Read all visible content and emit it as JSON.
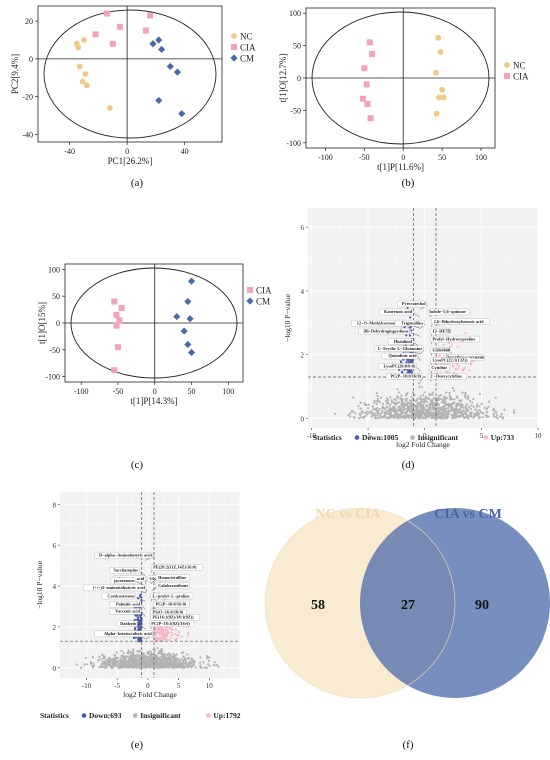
{
  "colors": {
    "nc": "#f0c98a",
    "cia": "#f2a3b5",
    "cm": "#4a6aa8",
    "down": "#4a5aa8",
    "insig": "#b3b3b3",
    "up": "#f6b6c6"
  },
  "captions": [
    "(a)",
    "(b)",
    "(c)",
    "(d)",
    "(e)",
    "(f)"
  ],
  "chart_data": [
    {
      "type": "scatter",
      "xlabel": "PC1[26.2%]",
      "ylabel": "PC2[9.4%]",
      "xticks": [
        -40,
        0,
        40
      ],
      "yticks": [
        -40,
        -20,
        0,
        20
      ],
      "xlim": [
        -62,
        66
      ],
      "ylim": [
        -44,
        28
      ],
      "legend": "right",
      "series": [
        {
          "name": "NC",
          "marker": "circle",
          "points": [
            [
              -34,
              6
            ],
            [
              -33,
              -4
            ],
            [
              -29,
              -8
            ],
            [
              -31,
              -12
            ],
            [
              -28,
              -14
            ],
            [
              -35,
              8
            ],
            [
              -12,
              -26
            ],
            [
              -30,
              10
            ]
          ]
        },
        {
          "name": "CIA",
          "marker": "square",
          "points": [
            [
              -22,
              13
            ],
            [
              -10,
              8
            ],
            [
              -5,
              17
            ],
            [
              13,
              15
            ],
            [
              16,
              23
            ],
            [
              -14,
              24
            ]
          ]
        },
        {
          "name": "CM",
          "marker": "diamond",
          "points": [
            [
              18,
              8
            ],
            [
              24,
              5
            ],
            [
              22,
              10
            ],
            [
              30,
              -4
            ],
            [
              35,
              -7
            ],
            [
              22,
              -22
            ],
            [
              38,
              -29
            ]
          ]
        }
      ]
    },
    {
      "type": "scatter",
      "xlabel": "t[1]P[11.6%]",
      "ylabel": "t[1]O[12.7%]",
      "xticks": [
        -100,
        -50,
        0,
        50,
        100
      ],
      "yticks": [
        -100,
        -50,
        0,
        50,
        100
      ],
      "xlim": [
        -125,
        118
      ],
      "ylim": [
        -108,
        108
      ],
      "legend": "right",
      "series": [
        {
          "name": "NC",
          "marker": "circle",
          "points": [
            [
              45,
              62
            ],
            [
              48,
              40
            ],
            [
              42,
              8
            ],
            [
              50,
              -18
            ],
            [
              46,
              -30
            ],
            [
              43,
              -55
            ],
            [
              52,
              -30
            ]
          ]
        },
        {
          "name": "CIA",
          "marker": "square",
          "points": [
            [
              -43,
              55
            ],
            [
              -40,
              37
            ],
            [
              -50,
              15
            ],
            [
              -47,
              -10
            ],
            [
              -52,
              -32
            ],
            [
              -46,
              -40
            ],
            [
              -42,
              -62
            ]
          ]
        }
      ]
    },
    {
      "type": "scatter",
      "xlabel": "t[1]P[14.3%]",
      "ylabel": "t[1]O[15%]",
      "xticks": [
        -100,
        -50,
        0,
        50,
        100
      ],
      "yticks": [
        -100,
        -50,
        0,
        50,
        100
      ],
      "xlim": [
        -122,
        120
      ],
      "ylim": [
        -110,
        110
      ],
      "legend": "right",
      "series": [
        {
          "name": "CIA",
          "marker": "square",
          "points": [
            [
              -55,
              40
            ],
            [
              -45,
              28
            ],
            [
              -52,
              15
            ],
            [
              -48,
              5
            ],
            [
              -52,
              -5
            ],
            [
              -50,
              -45
            ],
            [
              -55,
              -88
            ]
          ]
        },
        {
          "name": "CM",
          "marker": "diamond",
          "points": [
            [
              50,
              78
            ],
            [
              45,
              40
            ],
            [
              30,
              12
            ],
            [
              48,
              8
            ],
            [
              40,
              -15
            ],
            [
              45,
              -40
            ],
            [
              50,
              -55
            ]
          ]
        }
      ]
    },
    {
      "type": "scatter",
      "subtype": "volcano",
      "xlabel": "log2 Fold Change",
      "ylabel": "−log10 P−value",
      "xticks": [
        -10,
        -5,
        0,
        5,
        10
      ],
      "yticks": [
        0,
        2,
        4,
        6
      ],
      "xlim": [
        -10.3,
        10
      ],
      "ylim": [
        -0.3,
        6.6
      ],
      "thresholds": {
        "x": [
          -1,
          1
        ],
        "y": 1.3
      },
      "legend": {
        "title": "Statistics",
        "entries": [
          {
            "name": "Down:1005"
          },
          {
            "name": "Insignificant"
          },
          {
            "name": "Up:733"
          }
        ]
      },
      "labels": [
        {
          "text": "Pyrocatechol",
          "x": -0.8,
          "y": 3.55
        },
        {
          "text": "Kaurenoic acid",
          "x": -2.0,
          "y": 3.3
        },
        {
          "text": "Indole−5,6−quinone",
          "x": 0.3,
          "y": 3.3
        },
        {
          "text": "12−O−Methylcarnosic acid",
          "x": -2.5,
          "y": 2.95
        },
        {
          "text": "Trigonelline",
          "x": -1.0,
          "y": 2.95
        },
        {
          "text": "2,6−Dihydroxybenzoic acid",
          "x": 0.7,
          "y": 3.0
        },
        {
          "text": "[8]−Dehydrogingerdione",
          "x": -2.3,
          "y": 2.7
        },
        {
          "text": "12−HETE",
          "x": 0.6,
          "y": 2.7
        },
        {
          "text": "Histidinol",
          "x": -2.0,
          "y": 2.37
        },
        {
          "text": "Prolyl−Hydroxyproline",
          "x": 0.6,
          "y": 2.45
        },
        {
          "text": "L−Erythrulose",
          "x": -2.6,
          "y": 2.15
        },
        {
          "text": "L−Glutamine",
          "x": -1.1,
          "y": 2.15
        },
        {
          "text": "GSK0660",
          "x": 0.6,
          "y": 2.1
        },
        {
          "text": "Quinolinic acid",
          "x": -1.6,
          "y": 1.92
        },
        {
          "text": "Demethoxycurcumin",
          "x": 1.8,
          "y": 1.88
        },
        {
          "text": "LysoPC(22:1(13Z))",
          "x": 0.6,
          "y": 1.78
        },
        {
          "text": "LysoPC(20:0/0:0)",
          "x": -1.7,
          "y": 1.6
        },
        {
          "text": "Cytidine",
          "x": 0.5,
          "y": 1.55
        },
        {
          "text": "PC(P−16:0/16:0)",
          "x": -1.2,
          "y": 1.28
        },
        {
          "text": "2'−Deoxycytidine",
          "x": 0.4,
          "y": 1.28
        }
      ]
    },
    {
      "type": "scatter",
      "subtype": "volcano",
      "xlabel": "log2 Fold Change",
      "ylabel": "−log10 P−value",
      "xticks": [
        -10,
        -5,
        0,
        5,
        10
      ],
      "yticks": [
        0,
        2,
        4,
        6,
        8
      ],
      "xlim": [
        -14.3,
        15
      ],
      "ylim": [
        -0.5,
        8.6
      ],
      "thresholds": {
        "x": [
          -1,
          1
        ],
        "y": 1.3
      },
      "legend": {
        "title": "Statistics",
        "entries": [
          {
            "name": "Down:693"
          },
          {
            "name": "Insignificant"
          },
          {
            "name": "Up:1792"
          }
        ]
      },
      "labels": [
        {
          "text": "D−alpha−Aminobutyric acid",
          "x": -1.0,
          "y": 5.45
        },
        {
          "text": "Saccharopine",
          "x": -3.2,
          "y": 4.7
        },
        {
          "text": "PE(20:2(11Z,14Z)/16:0)",
          "x": 0.7,
          "y": 4.85
        },
        {
          "text": "Jasmonic acid",
          "x": -2.2,
          "y": 4.3
        },
        {
          "text": "Glycine",
          "x": 0.1,
          "y": 4.3
        },
        {
          "text": "Homocitrulline",
          "x": 1.5,
          "y": 4.35
        },
        {
          "text": "jacaranone",
          "x": -3.8,
          "y": 4.2
        },
        {
          "text": "Calabaxanthone",
          "x": 1.5,
          "y": 3.95
        },
        {
          "text": "Eugenitin",
          "x": -3.8,
          "y": 3.85
        },
        {
          "text": "(+/−)3−aminoisobutyric acid",
          "x": -2.1,
          "y": 3.85
        },
        {
          "text": "Corticosterone",
          "x": -3.8,
          "y": 3.45
        },
        {
          "text": "L−prolyl−L−proline",
          "x": 0.6,
          "y": 3.45
        },
        {
          "text": "Palmitic acid",
          "x": -2.9,
          "y": 3.05
        },
        {
          "text": "PC(P−16:0/16:0)",
          "x": 1.1,
          "y": 3.05
        },
        {
          "text": "Vaccenic acid",
          "x": -2.9,
          "y": 2.7
        },
        {
          "text": "PS(O−16:0/18:0)",
          "x": 0.6,
          "y": 2.65
        },
        {
          "text": "PE(16:1(9Z)/18:1(9Z))",
          "x": 0.6,
          "y": 2.4
        },
        {
          "text": "Daidzein",
          "x": -3.5,
          "y": 2.1
        },
        {
          "text": "PC(P−18:1(9Z)/16:0)",
          "x": 0.4,
          "y": 2.1
        },
        {
          "text": "Linoleic acid",
          "x": -3.5,
          "y": 1.6
        },
        {
          "text": "Alpha−ketoisovaleric acid",
          "x": -1.0,
          "y": 1.6
        }
      ]
    },
    {
      "type": "venn",
      "sets": [
        {
          "name": "NC vs CIA",
          "only": 58
        },
        {
          "name": "CIA vs CM",
          "only": 90
        }
      ],
      "intersection": 27
    }
  ]
}
